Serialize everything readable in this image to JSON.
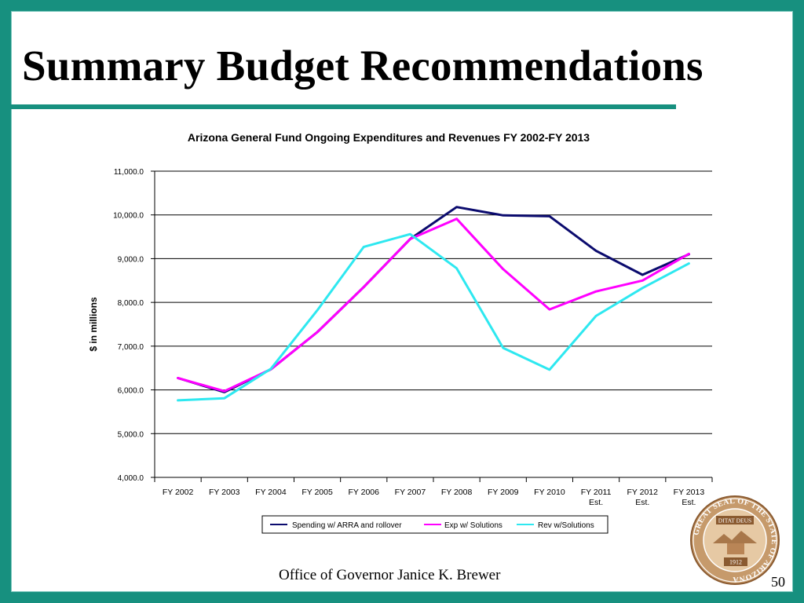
{
  "slide": {
    "title": "Summary Budget Recommendations",
    "footer": "Office of Governor Janice K. Brewer",
    "page_number": "50",
    "seal": {
      "outer_text": "GREAT SEAL OF THE STATE OF ARIZONA",
      "motto": "DITAT DEUS",
      "year": "1912"
    }
  },
  "colors": {
    "border": "#17907f",
    "series_spending": "#0b0b6e",
    "series_exp": "#ff00ff",
    "series_rev": "#2ee8f0"
  },
  "chart_data": {
    "type": "line",
    "title": "Arizona General Fund Ongoing Expenditures and Revenues FY 2002-FY 2013",
    "xlabel": "",
    "ylabel": "$ in millions",
    "ylim": [
      4000,
      11000
    ],
    "yticks": [
      "4,000.0",
      "5,000.0",
      "6,000.0",
      "7,000.0",
      "8,000.0",
      "9,000.0",
      "10,000.0",
      "11,000.0"
    ],
    "grid": true,
    "legend": "bottom",
    "categories": [
      [
        "FY 2002"
      ],
      [
        "FY 2003"
      ],
      [
        "FY 2004"
      ],
      [
        "FY 2005"
      ],
      [
        "FY 2006"
      ],
      [
        "FY 2007"
      ],
      [
        "FY 2008"
      ],
      [
        "FY 2009"
      ],
      [
        "FY 2010"
      ],
      [
        "FY 2011",
        "Est."
      ],
      [
        "FY 2012",
        "Est."
      ],
      [
        "FY 2013",
        "Est."
      ]
    ],
    "series": [
      {
        "name": "Spending w/ ARRA and rollover",
        "color": "#0b0b6e",
        "values": [
          6270,
          5950,
          6470,
          7320,
          8350,
          9450,
          10180,
          9990,
          9970,
          9180,
          8630,
          9100
        ]
      },
      {
        "name": "Exp w/ Solutions",
        "color": "#ff00ff",
        "values": [
          6270,
          5970,
          6470,
          7320,
          8350,
          9450,
          9910,
          8760,
          7840,
          8250,
          8500,
          9110
        ]
      },
      {
        "name": "Rev w/Solutions",
        "color": "#2ee8f0",
        "values": [
          5760,
          5810,
          6480,
          7820,
          9270,
          9560,
          8780,
          6960,
          6460,
          7690,
          8330,
          8890
        ]
      }
    ]
  }
}
